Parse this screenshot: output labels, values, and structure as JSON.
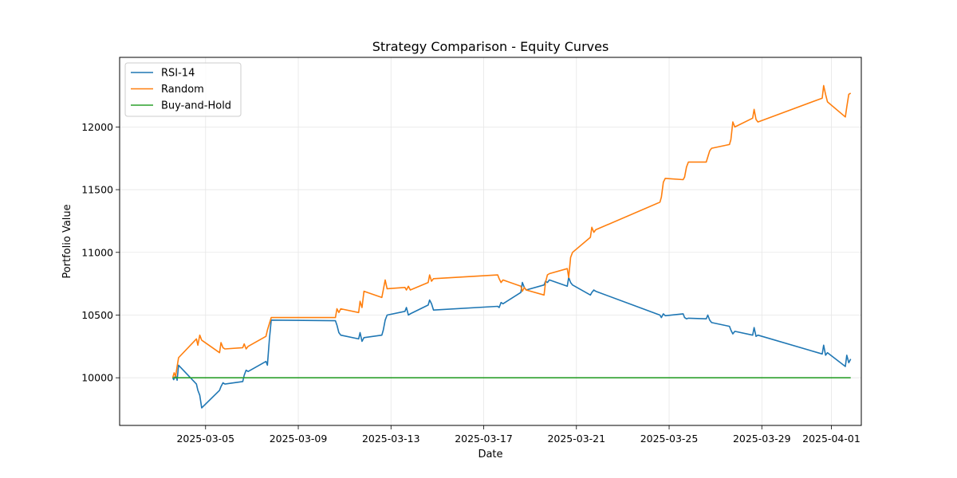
{
  "chart_data": {
    "type": "line",
    "title": "Strategy Comparison - Equity Curves",
    "xlabel": "Date",
    "ylabel": "Portfolio Value",
    "xlim": [
      "2025-03-01T07:00",
      "2025-04-02T07:00"
    ],
    "ylim": [
      9620,
      12555
    ],
    "x_ticks": [
      {
        "value": "2025-03-05",
        "label": "2025-03-05"
      },
      {
        "value": "2025-03-09",
        "label": "2025-03-09"
      },
      {
        "value": "2025-03-13",
        "label": "2025-03-13"
      },
      {
        "value": "2025-03-17",
        "label": "2025-03-17"
      },
      {
        "value": "2025-03-21",
        "label": "2025-03-21"
      },
      {
        "value": "2025-03-25",
        "label": "2025-03-25"
      },
      {
        "value": "2025-03-29",
        "label": "2025-03-29"
      },
      {
        "value": "2025-04-01",
        "label": "2025-04-01"
      }
    ],
    "y_ticks": [
      10000,
      10500,
      11000,
      11500,
      12000
    ],
    "grid": true,
    "legend_position": "upper-left",
    "series": [
      {
        "name": "RSI-14",
        "color": "#1f77b4",
        "points": [
          [
            "2025-03-03T14:00",
            10000
          ],
          [
            "2025-03-03T15:00",
            9985
          ],
          [
            "2025-03-03T17:00",
            10020
          ],
          [
            "2025-03-03T18:30",
            9980
          ],
          [
            "2025-03-03T20:00",
            10100
          ],
          [
            "2025-03-04T14:30",
            9950
          ],
          [
            "2025-03-04T16:00",
            9900
          ],
          [
            "2025-03-04T18:00",
            9860
          ],
          [
            "2025-03-04T20:00",
            9760
          ],
          [
            "2025-03-05T14:30",
            9900
          ],
          [
            "2025-03-05T16:00",
            9930
          ],
          [
            "2025-03-05T18:00",
            9960
          ],
          [
            "2025-03-05T20:00",
            9950
          ],
          [
            "2025-03-06T14:30",
            9970
          ],
          [
            "2025-03-06T16:00",
            10020
          ],
          [
            "2025-03-06T18:00",
            10060
          ],
          [
            "2025-03-06T20:00",
            10050
          ],
          [
            "2025-03-07T14:30",
            10130
          ],
          [
            "2025-03-07T16:00",
            10100
          ],
          [
            "2025-03-07T18:00",
            10300
          ],
          [
            "2025-03-07T20:00",
            10460
          ],
          [
            "2025-03-10T14:30",
            10455
          ],
          [
            "2025-03-10T16:00",
            10420
          ],
          [
            "2025-03-10T18:00",
            10360
          ],
          [
            "2025-03-10T20:00",
            10340
          ],
          [
            "2025-03-11T14:30",
            10310
          ],
          [
            "2025-03-11T16:00",
            10360
          ],
          [
            "2025-03-11T18:00",
            10290
          ],
          [
            "2025-03-11T20:00",
            10320
          ],
          [
            "2025-03-12T14:30",
            10340
          ],
          [
            "2025-03-12T16:00",
            10380
          ],
          [
            "2025-03-12T18:00",
            10460
          ],
          [
            "2025-03-12T20:00",
            10500
          ],
          [
            "2025-03-13T14:30",
            10530
          ],
          [
            "2025-03-13T16:00",
            10560
          ],
          [
            "2025-03-13T18:00",
            10500
          ],
          [
            "2025-03-13T20:00",
            10510
          ],
          [
            "2025-03-14T14:30",
            10580
          ],
          [
            "2025-03-14T16:00",
            10620
          ],
          [
            "2025-03-14T18:00",
            10590
          ],
          [
            "2025-03-14T20:00",
            10540
          ],
          [
            "2025-03-17T14:30",
            10570
          ],
          [
            "2025-03-17T16:00",
            10560
          ],
          [
            "2025-03-17T18:00",
            10600
          ],
          [
            "2025-03-17T20:00",
            10590
          ],
          [
            "2025-03-18T14:30",
            10680
          ],
          [
            "2025-03-18T16:00",
            10760
          ],
          [
            "2025-03-18T18:00",
            10720
          ],
          [
            "2025-03-18T20:00",
            10700
          ],
          [
            "2025-03-19T14:30",
            10740
          ],
          [
            "2025-03-19T16:00",
            10770
          ],
          [
            "2025-03-19T18:00",
            10760
          ],
          [
            "2025-03-19T20:00",
            10780
          ],
          [
            "2025-03-20T14:30",
            10730
          ],
          [
            "2025-03-20T16:00",
            10800
          ],
          [
            "2025-03-20T18:00",
            10760
          ],
          [
            "2025-03-20T20:00",
            10740
          ],
          [
            "2025-03-21T14:30",
            10660
          ],
          [
            "2025-03-21T16:00",
            10680
          ],
          [
            "2025-03-21T18:00",
            10700
          ],
          [
            "2025-03-21T20:00",
            10690
          ],
          [
            "2025-03-24T14:30",
            10500
          ],
          [
            "2025-03-24T16:00",
            10480
          ],
          [
            "2025-03-24T18:00",
            10510
          ],
          [
            "2025-03-24T20:00",
            10495
          ],
          [
            "2025-03-25T14:30",
            10510
          ],
          [
            "2025-03-25T16:00",
            10480
          ],
          [
            "2025-03-25T18:00",
            10470
          ],
          [
            "2025-03-25T20:00",
            10475
          ],
          [
            "2025-03-26T14:30",
            10470
          ],
          [
            "2025-03-26T16:00",
            10500
          ],
          [
            "2025-03-26T18:00",
            10460
          ],
          [
            "2025-03-26T20:00",
            10440
          ],
          [
            "2025-03-27T14:30",
            10410
          ],
          [
            "2025-03-27T16:00",
            10380
          ],
          [
            "2025-03-27T18:00",
            10350
          ],
          [
            "2025-03-27T20:00",
            10370
          ],
          [
            "2025-03-28T14:30",
            10340
          ],
          [
            "2025-03-28T16:00",
            10400
          ],
          [
            "2025-03-28T18:00",
            10330
          ],
          [
            "2025-03-28T20:00",
            10340
          ],
          [
            "2025-03-31T14:30",
            10190
          ],
          [
            "2025-03-31T16:00",
            10260
          ],
          [
            "2025-03-31T18:00",
            10180
          ],
          [
            "2025-03-31T20:00",
            10200
          ],
          [
            "2025-04-01T14:30",
            10090
          ],
          [
            "2025-04-01T16:00",
            10180
          ],
          [
            "2025-04-01T18:00",
            10120
          ],
          [
            "2025-04-01T20:00",
            10150
          ]
        ]
      },
      {
        "name": "Random",
        "color": "#ff7f0e",
        "points": [
          [
            "2025-03-03T14:00",
            10000
          ],
          [
            "2025-03-03T15:30",
            10040
          ],
          [
            "2025-03-03T17:00",
            10010
          ],
          [
            "2025-03-03T18:30",
            10090
          ],
          [
            "2025-03-03T20:00",
            10160
          ],
          [
            "2025-03-04T14:30",
            10310
          ],
          [
            "2025-03-04T16:00",
            10260
          ],
          [
            "2025-03-04T18:00",
            10340
          ],
          [
            "2025-03-04T20:00",
            10300
          ],
          [
            "2025-03-05T14:30",
            10200
          ],
          [
            "2025-03-05T16:00",
            10280
          ],
          [
            "2025-03-05T18:00",
            10240
          ],
          [
            "2025-03-05T20:00",
            10230
          ],
          [
            "2025-03-06T14:30",
            10240
          ],
          [
            "2025-03-06T16:00",
            10270
          ],
          [
            "2025-03-06T18:00",
            10230
          ],
          [
            "2025-03-06T20:00",
            10250
          ],
          [
            "2025-03-07T14:30",
            10330
          ],
          [
            "2025-03-07T16:00",
            10380
          ],
          [
            "2025-03-07T18:00",
            10430
          ],
          [
            "2025-03-07T20:00",
            10480
          ],
          [
            "2025-03-10T14:30",
            10480
          ],
          [
            "2025-03-10T16:00",
            10550
          ],
          [
            "2025-03-10T18:00",
            10520
          ],
          [
            "2025-03-10T20:00",
            10550
          ],
          [
            "2025-03-11T14:30",
            10520
          ],
          [
            "2025-03-11T16:00",
            10610
          ],
          [
            "2025-03-11T18:00",
            10560
          ],
          [
            "2025-03-11T20:00",
            10690
          ],
          [
            "2025-03-12T14:30",
            10640
          ],
          [
            "2025-03-12T16:00",
            10700
          ],
          [
            "2025-03-12T18:00",
            10780
          ],
          [
            "2025-03-12T20:00",
            10710
          ],
          [
            "2025-03-13T14:30",
            10720
          ],
          [
            "2025-03-13T16:00",
            10700
          ],
          [
            "2025-03-13T18:00",
            10730
          ],
          [
            "2025-03-13T20:00",
            10700
          ],
          [
            "2025-03-14T14:30",
            10760
          ],
          [
            "2025-03-14T16:00",
            10820
          ],
          [
            "2025-03-14T18:00",
            10770
          ],
          [
            "2025-03-14T20:00",
            10790
          ],
          [
            "2025-03-17T14:30",
            10820
          ],
          [
            "2025-03-17T16:00",
            10790
          ],
          [
            "2025-03-17T18:00",
            10760
          ],
          [
            "2025-03-17T20:00",
            10780
          ],
          [
            "2025-03-18T14:30",
            10730
          ],
          [
            "2025-03-18T16:00",
            10690
          ],
          [
            "2025-03-18T18:00",
            10720
          ],
          [
            "2025-03-18T20:00",
            10700
          ],
          [
            "2025-03-19T14:30",
            10660
          ],
          [
            "2025-03-19T16:00",
            10760
          ],
          [
            "2025-03-19T18:00",
            10820
          ],
          [
            "2025-03-19T20:00",
            10830
          ],
          [
            "2025-03-20T14:30",
            10870
          ],
          [
            "2025-03-20T16:00",
            10800
          ],
          [
            "2025-03-20T18:00",
            10960
          ],
          [
            "2025-03-20T20:00",
            11000
          ],
          [
            "2025-03-21T14:30",
            11120
          ],
          [
            "2025-03-21T16:00",
            11200
          ],
          [
            "2025-03-21T18:00",
            11160
          ],
          [
            "2025-03-21T20:00",
            11180
          ],
          [
            "2025-03-24T14:30",
            11400
          ],
          [
            "2025-03-24T16:00",
            11440
          ],
          [
            "2025-03-24T18:00",
            11560
          ],
          [
            "2025-03-24T20:00",
            11590
          ],
          [
            "2025-03-25T14:30",
            11580
          ],
          [
            "2025-03-25T16:00",
            11600
          ],
          [
            "2025-03-25T18:00",
            11680
          ],
          [
            "2025-03-25T20:00",
            11720
          ],
          [
            "2025-03-26T14:30",
            11720
          ],
          [
            "2025-03-26T16:00",
            11760
          ],
          [
            "2025-03-26T18:00",
            11810
          ],
          [
            "2025-03-26T20:00",
            11830
          ],
          [
            "2025-03-27T14:30",
            11860
          ],
          [
            "2025-03-27T16:00",
            11900
          ],
          [
            "2025-03-27T18:00",
            12040
          ],
          [
            "2025-03-27T20:00",
            12000
          ],
          [
            "2025-03-28T14:30",
            12070
          ],
          [
            "2025-03-28T16:00",
            12140
          ],
          [
            "2025-03-28T18:00",
            12060
          ],
          [
            "2025-03-28T20:00",
            12040
          ],
          [
            "2025-03-31T14:30",
            12230
          ],
          [
            "2025-03-31T16:00",
            12330
          ],
          [
            "2025-03-31T18:00",
            12260
          ],
          [
            "2025-03-31T20:00",
            12200
          ],
          [
            "2025-04-01T14:30",
            12080
          ],
          [
            "2025-04-01T16:00",
            12160
          ],
          [
            "2025-04-01T18:00",
            12260
          ],
          [
            "2025-04-01T20:00",
            12270
          ]
        ]
      },
      {
        "name": "Buy-and-Hold",
        "color": "#2ca02c",
        "points": [
          [
            "2025-03-03T14:00",
            10000
          ],
          [
            "2025-04-01T20:00",
            10000
          ]
        ]
      }
    ]
  }
}
